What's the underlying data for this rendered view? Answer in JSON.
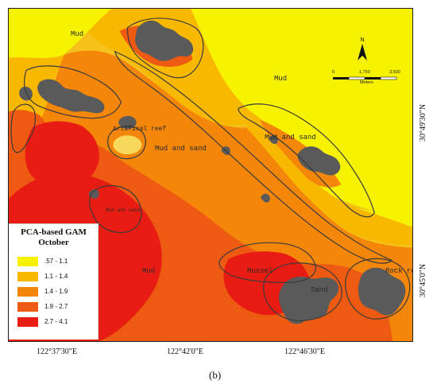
{
  "legend": {
    "title": "PCA-based GAM",
    "subtitle": "October",
    "classes": [
      {
        "label": ".57 - 1.1",
        "color": "#f6f200"
      },
      {
        "label": "1.1 - 1.4",
        "color": "#f8b800"
      },
      {
        "label": "1.4 - 1.9",
        "color": "#f4860a"
      },
      {
        "label": "1.9 - 2.7",
        "color": "#ee5a12"
      },
      {
        "label": "2.7 - 4.1",
        "color": "#e81c12"
      }
    ]
  },
  "map_labels": {
    "mud_nw": "Mud",
    "mud_ne": "Mud",
    "artificial_reef": "Artifical reef",
    "mud_and_sand_center": "Mud and sand",
    "mud_and_sand_east": "Mud and sand",
    "mud_sw_small": "Mud and sand",
    "mud_south": "Mud",
    "mussel": "Mussel",
    "sand": "Sand",
    "rock_reef": "Rock reef"
  },
  "north_arrow": {
    "label": "N"
  },
  "scale_bar": {
    "ticks": [
      "0",
      "1,750",
      "3,500"
    ],
    "unit": "Meters"
  },
  "axes": {
    "x_ticks": [
      "122°37'30\"E",
      "122°42'0\"E",
      "122°46'30\"E"
    ],
    "y_ticks": [
      "30°49'30\"N",
      "30°45'0\"N"
    ]
  },
  "caption": "(b)",
  "colors": {
    "land": "#5a5a5a",
    "contour": "#3a3a3a",
    "frame": "#202020"
  }
}
